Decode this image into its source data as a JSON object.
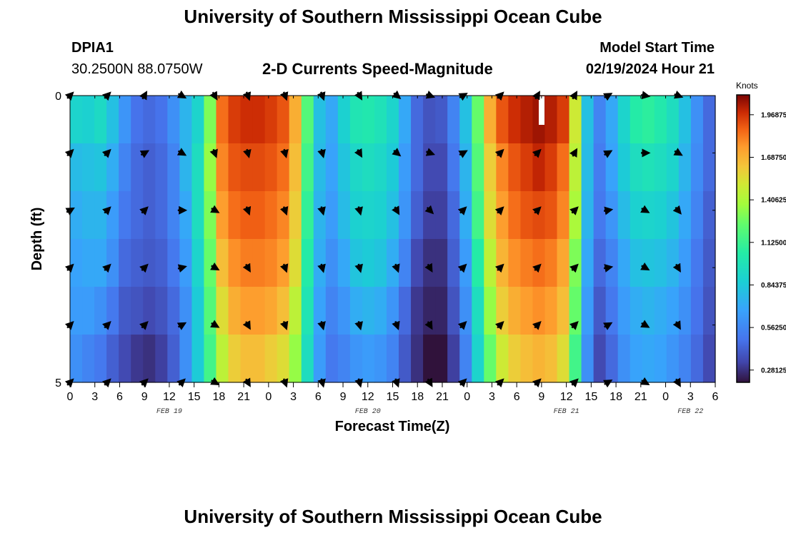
{
  "header": {
    "title": "University of Southern Mississippi Ocean Cube",
    "station_id": "DPIA1",
    "station_coords": "30.2500N  88.0750W",
    "subtitle": "2-D Currents Speed-Magnitude",
    "model_start_label": "Model Start Time",
    "model_start_value": "02/19/2024 Hour 21"
  },
  "footer": {
    "repeat_title": "University of Southern Mississippi Ocean Cube"
  },
  "chart_data": {
    "type": "heatmap",
    "title": "2-D Currents Speed-Magnitude",
    "xlabel": "Forecast Time(Z)",
    "ylabel": "Depth (ft)",
    "x_ticks": [
      "0",
      "3",
      "6",
      "9",
      "12",
      "15",
      "18",
      "21",
      "0",
      "3",
      "6",
      "9",
      "12",
      "15",
      "18",
      "21",
      "0",
      "3",
      "6",
      "9",
      "12",
      "15",
      "18",
      "21",
      "0",
      "3",
      "6"
    ],
    "x_range_hours": [
      0,
      78
    ],
    "date_labels": [
      {
        "text": "FEB 19",
        "hour": 12
      },
      {
        "text": "FEB 20",
        "hour": 36
      },
      {
        "text": "FEB 21",
        "hour": 60
      },
      {
        "text": "FEB 22",
        "hour": 75
      }
    ],
    "y_ticks": [
      "0",
      "5"
    ],
    "y_range_ft": [
      0,
      5
    ],
    "colorbar": {
      "unit": "Knots",
      "min": 0.2,
      "max": 2.1,
      "tick_labels": [
        "1.96875",
        "1.68750",
        "1.40625",
        "1.12500",
        "0.84375",
        "0.56250",
        "0.28125"
      ]
    },
    "depth_rows_ft": [
      0,
      1,
      2,
      3,
      4,
      5
    ],
    "speed_knots": [
      [
        0.9,
        0.88,
        0.93,
        0.8,
        0.62,
        0.48,
        0.45,
        0.48,
        0.6,
        0.75,
        0.9,
        1.3,
        1.85,
        1.95,
        1.98,
        1.98,
        1.95,
        1.9,
        1.7,
        1.2,
        0.8,
        0.7,
        0.88,
        1.0,
        1.02,
        0.98,
        0.9,
        0.7,
        0.45,
        0.38,
        0.4,
        0.55,
        0.8,
        1.25,
        1.7,
        1.9,
        1.98,
        2.02,
        2.05,
        2.02,
        1.95,
        1.5,
        0.8,
        0.55,
        0.7,
        0.9,
        1.05,
        1.08,
        1.03,
        0.95,
        0.8,
        0.6,
        0.45
      ],
      [
        0.78,
        0.8,
        0.82,
        0.72,
        0.55,
        0.45,
        0.42,
        0.45,
        0.55,
        0.75,
        0.95,
        1.35,
        1.8,
        1.9,
        1.92,
        1.92,
        1.9,
        1.85,
        1.65,
        1.15,
        0.78,
        0.68,
        0.82,
        0.92,
        0.95,
        0.92,
        0.85,
        0.65,
        0.45,
        0.35,
        0.35,
        0.5,
        0.75,
        1.2,
        1.6,
        1.8,
        1.9,
        1.95,
        2.0,
        1.95,
        1.85,
        1.45,
        0.78,
        0.52,
        0.68,
        0.85,
        0.95,
        0.98,
        0.95,
        0.9,
        0.75,
        0.58,
        0.45
      ],
      [
        0.72,
        0.75,
        0.75,
        0.65,
        0.5,
        0.45,
        0.42,
        0.45,
        0.55,
        0.7,
        0.95,
        1.3,
        1.75,
        1.85,
        1.88,
        1.88,
        1.85,
        1.8,
        1.6,
        1.1,
        0.75,
        0.65,
        0.78,
        0.88,
        0.9,
        0.88,
        0.8,
        0.62,
        0.42,
        0.32,
        0.32,
        0.45,
        0.72,
        1.15,
        1.55,
        1.75,
        1.85,
        1.9,
        1.92,
        1.9,
        1.8,
        1.4,
        0.75,
        0.5,
        0.62,
        0.78,
        0.88,
        0.9,
        0.88,
        0.82,
        0.7,
        0.55,
        0.42
      ],
      [
        0.68,
        0.7,
        0.7,
        0.6,
        0.45,
        0.42,
        0.4,
        0.42,
        0.5,
        0.65,
        0.9,
        1.25,
        1.65,
        1.78,
        1.82,
        1.82,
        1.8,
        1.75,
        1.55,
        1.05,
        0.72,
        0.6,
        0.7,
        0.82,
        0.85,
        0.82,
        0.72,
        0.55,
        0.35,
        0.28,
        0.28,
        0.42,
        0.65,
        1.05,
        1.45,
        1.68,
        1.78,
        1.82,
        1.85,
        1.82,
        1.72,
        1.3,
        0.7,
        0.45,
        0.55,
        0.7,
        0.8,
        0.82,
        0.8,
        0.75,
        0.65,
        0.5,
        0.4
      ],
      [
        0.65,
        0.65,
        0.6,
        0.5,
        0.4,
        0.38,
        0.35,
        0.38,
        0.45,
        0.6,
        0.85,
        1.2,
        1.55,
        1.7,
        1.75,
        1.75,
        1.72,
        1.65,
        1.45,
        1.0,
        0.68,
        0.55,
        0.62,
        0.72,
        0.75,
        0.72,
        0.62,
        0.45,
        0.3,
        0.25,
        0.25,
        0.38,
        0.6,
        0.95,
        1.35,
        1.6,
        1.7,
        1.75,
        1.78,
        1.75,
        1.65,
        1.25,
        0.65,
        0.4,
        0.5,
        0.65,
        0.72,
        0.75,
        0.72,
        0.68,
        0.6,
        0.48,
        0.38
      ],
      [
        0.6,
        0.55,
        0.5,
        0.42,
        0.35,
        0.3,
        0.28,
        0.32,
        0.42,
        0.6,
        0.85,
        1.15,
        1.45,
        1.6,
        1.65,
        1.65,
        1.6,
        1.55,
        1.35,
        0.95,
        0.65,
        0.5,
        0.55,
        0.62,
        0.65,
        0.62,
        0.55,
        0.4,
        0.28,
        0.2,
        0.2,
        0.32,
        0.55,
        0.9,
        1.25,
        1.5,
        1.6,
        1.65,
        1.68,
        1.65,
        1.55,
        1.15,
        0.6,
        0.35,
        0.45,
        0.6,
        0.68,
        0.7,
        0.68,
        0.62,
        0.55,
        0.45,
        0.35
      ]
    ],
    "vector_times_hours": [
      0,
      4.5,
      9,
      13.5,
      17.5,
      21.5,
      26,
      30.5,
      35,
      39.5,
      43.5,
      47.5,
      52,
      56.5,
      61,
      65,
      69.5,
      73.5
    ],
    "vector_direction_deg": [
      [
        45,
        45,
        30,
        120,
        150,
        160,
        160,
        160,
        150,
        130,
        110,
        60,
        45,
        30,
        30,
        60,
        100,
        110
      ],
      [
        45,
        45,
        60,
        120,
        160,
        165,
        165,
        165,
        150,
        130,
        110,
        60,
        45,
        45,
        30,
        60,
        90,
        120
      ],
      [
        60,
        45,
        45,
        90,
        120,
        160,
        160,
        165,
        165,
        150,
        135,
        45,
        45,
        45,
        45,
        80,
        120,
        140
      ],
      [
        45,
        45,
        45,
        75,
        120,
        150,
        160,
        165,
        165,
        160,
        150,
        45,
        45,
        45,
        45,
        80,
        120,
        150
      ],
      [
        45,
        45,
        45,
        60,
        120,
        150,
        160,
        165,
        165,
        160,
        150,
        45,
        45,
        45,
        45,
        60,
        120,
        150
      ],
      [
        45,
        45,
        45,
        45,
        120,
        150,
        160,
        165,
        165,
        160,
        150,
        45,
        45,
        45,
        45,
        60,
        120,
        150
      ]
    ]
  }
}
